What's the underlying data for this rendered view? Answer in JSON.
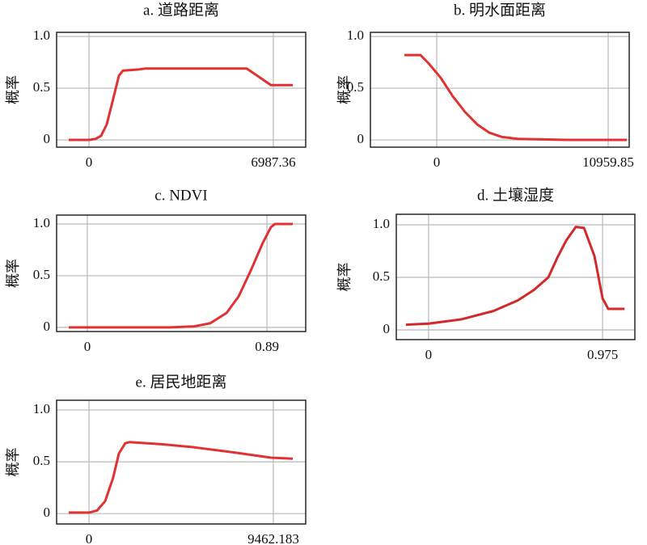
{
  "chart_data": [
    {
      "type": "line",
      "title": "a. 道路距离",
      "ylabel": "概率",
      "color": "#e03232",
      "x": [
        -766,
        0,
        245,
        460,
        674,
        920,
        1134,
        1287,
        1839,
        2146,
        5977,
        6896,
        7724
      ],
      "values": [
        0,
        0,
        0.01,
        0.04,
        0.15,
        0.4,
        0.62,
        0.67,
        0.68,
        0.69,
        0.69,
        0.53,
        0.53
      ],
      "xlim": [
        -1226,
        8213
      ],
      "xticks": [
        0,
        6987.36
      ],
      "ylim": [
        -0.07,
        1.04
      ],
      "yticks": [
        0,
        0.5,
        {
          "value": 1,
          "label": "1.0"
        }
      ],
      "grid": true
    },
    {
      "type": "line",
      "title": "b. 明水面距离",
      "ylabel": "概率",
      "color": "#e03232",
      "x": [
        -2068,
        -1034,
        -517,
        259,
        1034,
        1810,
        2585,
        3361,
        4136,
        5170,
        8272,
        12149
      ],
      "values": [
        0.82,
        0.82,
        0.74,
        0.6,
        0.42,
        0.27,
        0.15,
        0.07,
        0.03,
        0.01,
        0,
        0
      ],
      "xlim": [
        -4240,
        12304
      ],
      "xticks": [
        0,
        10959.85
      ],
      "ylim": [
        -0.07,
        1.04
      ],
      "yticks": [
        0,
        0.5,
        {
          "value": 1,
          "label": "1.0"
        }
      ],
      "grid": true
    },
    {
      "type": "line",
      "title": "c. NDVI",
      "ylabel": "概率",
      "color": "#e03232",
      "x": [
        -0.092,
        0.409,
        0.529,
        0.609,
        0.69,
        0.75,
        0.81,
        0.87,
        0.91,
        0.93,
        1.018
      ],
      "values": [
        0,
        0,
        0.01,
        0.04,
        0.14,
        0.3,
        0.55,
        0.82,
        0.97,
        1,
        1
      ],
      "xlim": [
        -0.152,
        1.082
      ],
      "xticks": [
        0,
        0.89
      ],
      "ylim": [
        -0.04,
        1.086
      ],
      "yticks": [
        0,
        0.5,
        {
          "value": 1,
          "label": "1.0"
        }
      ],
      "grid": true
    },
    {
      "type": "line",
      "title": "d. 土壤湿度",
      "ylabel": "概率",
      "color": "#d22a2a",
      "x": [
        -0.127,
        0,
        0.181,
        0.363,
        0.499,
        0.59,
        0.671,
        0.725,
        0.771,
        0.825,
        0.871,
        0.93,
        0.975,
        1.007,
        1.098
      ],
      "values": [
        0.05,
        0.06,
        0.1,
        0.18,
        0.28,
        0.38,
        0.5,
        0.7,
        0.85,
        0.98,
        0.97,
        0.7,
        0.3,
        0.2,
        0.2
      ],
      "xlim": [
        -0.181,
        1.156
      ],
      "xticks": [
        0,
        0.975
      ],
      "ylim": [
        -0.092,
        1.1
      ],
      "yticks": [
        0,
        0.5,
        {
          "value": 1,
          "label": "1.0"
        }
      ],
      "grid": true
    },
    {
      "type": "line",
      "title": "e. 居民地距离",
      "ylabel": "概率",
      "color": "#e03232",
      "x": [
        -1038,
        0,
        415,
        830,
        1245,
        1535,
        1867,
        2075,
        3735,
        5395,
        7470,
        9338,
        10458
      ],
      "values": [
        0.01,
        0.01,
        0.03,
        0.12,
        0.35,
        0.58,
        0.68,
        0.69,
        0.67,
        0.64,
        0.59,
        0.54,
        0.53
      ],
      "xlim": [
        -1660,
        11122
      ],
      "xticks": [
        0,
        9462.183
      ],
      "ylim": [
        -0.1,
        1.094
      ],
      "yticks": [
        0,
        0.5,
        {
          "value": 1,
          "label": "1.0"
        }
      ],
      "grid": true
    }
  ]
}
